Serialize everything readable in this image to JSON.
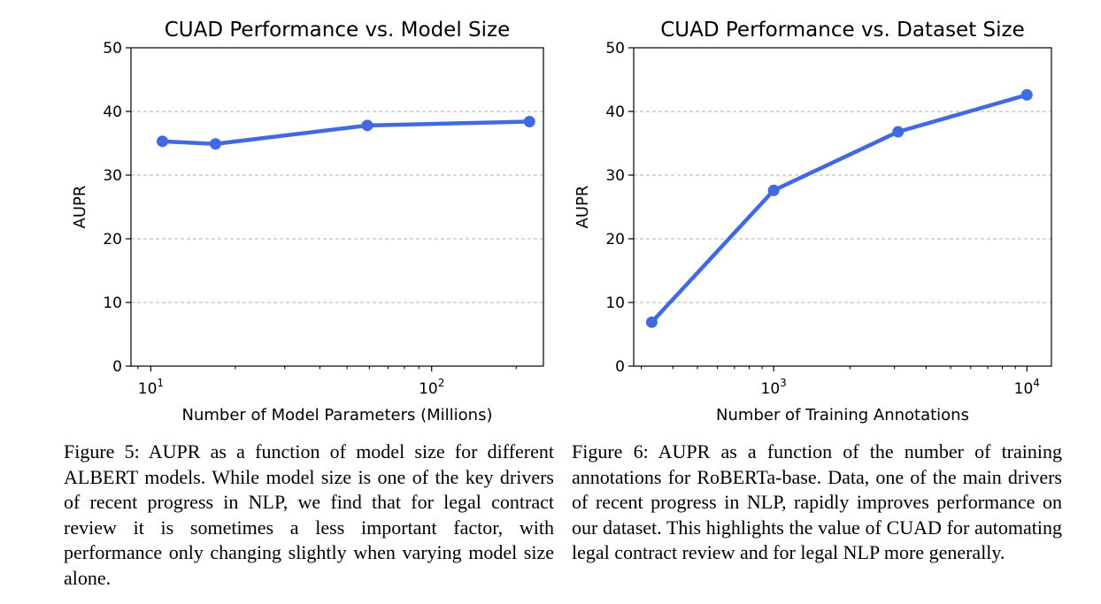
{
  "chart_data": [
    {
      "type": "line",
      "title": "CUAD Performance vs. Model Size",
      "xlabel": "Number of Model Parameters (Millions)",
      "ylabel": "AUPR",
      "xscale": "log",
      "xlim": [
        8.5,
        250
      ],
      "ylim": [
        0,
        50
      ],
      "yticks": [
        0,
        10,
        20,
        30,
        40,
        50
      ],
      "xticks": [
        {
          "value": 10,
          "base": "10",
          "exp": "1"
        },
        {
          "value": 100,
          "base": "10",
          "exp": "2"
        }
      ],
      "grid": "y-dashed",
      "color": "#4169e1",
      "x": [
        11,
        17,
        59,
        223
      ],
      "y": [
        35.3,
        34.9,
        37.8,
        38.4
      ]
    },
    {
      "type": "line",
      "title": "CUAD Performance vs. Dataset Size",
      "xlabel": "Number of Training Annotations",
      "ylabel": "AUPR",
      "xscale": "log",
      "xlim": [
        280,
        12500
      ],
      "ylim": [
        0,
        50
      ],
      "yticks": [
        0,
        10,
        20,
        30,
        40,
        50
      ],
      "xticks": [
        {
          "value": 1000,
          "base": "10",
          "exp": "3"
        },
        {
          "value": 10000,
          "base": "10",
          "exp": "4"
        }
      ],
      "grid": "y-dashed",
      "color": "#4169e1",
      "x": [
        330,
        1000,
        3100,
        10000
      ],
      "y": [
        6.9,
        27.6,
        36.8,
        42.6
      ]
    }
  ],
  "captions": {
    "left": "Figure 5: AUPR as a function of model size for different ALBERT models. While model size is one of the key drivers of recent progress in NLP, we find that for legal contract review it is sometimes a less important factor, with performance only changing slightly when varying model size alone.",
    "right": "Figure 6: AUPR as a function of the number of training annotations for RoBERTa-base. Data, one of the main drivers of recent progress in NLP, rapidly improves performance on our dataset. This highlights the value of CUAD for automating legal contract review and for legal NLP more generally."
  }
}
